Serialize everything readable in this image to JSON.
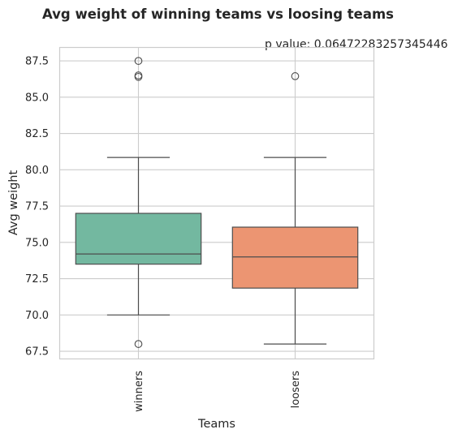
{
  "chart_data": {
    "type": "box",
    "title": "Avg weight of winning teams vs loosing teams",
    "annotation": "p value: 0.06472283257345446",
    "xlabel": "Teams",
    "ylabel": "Avg weight",
    "ylim": [
      67.0,
      88.4
    ],
    "yticks": [
      "67.5",
      "70.0",
      "72.5",
      "75.0",
      "77.5",
      "80.0",
      "82.5",
      "85.0",
      "87.5"
    ],
    "ytick_values": [
      67.5,
      70.0,
      72.5,
      75.0,
      77.5,
      80.0,
      82.5,
      85.0,
      87.5
    ],
    "grid": true,
    "categories": [
      "winners",
      "loosers"
    ],
    "boxes": [
      {
        "category": "winners",
        "whisker_low": 70.0,
        "q1": 73.5,
        "median": 74.2,
        "q3": 77.0,
        "whisker_high": 80.85,
        "outliers": [
          68.0,
          86.4,
          86.5,
          87.5
        ],
        "color": "#73b8a0"
      },
      {
        "category": "loosers",
        "whisker_low": 68.0,
        "q1": 71.85,
        "median": 74.0,
        "q3": 76.05,
        "whisker_high": 80.85,
        "outliers": [
          86.45
        ],
        "color": "#ec9572"
      }
    ]
  }
}
